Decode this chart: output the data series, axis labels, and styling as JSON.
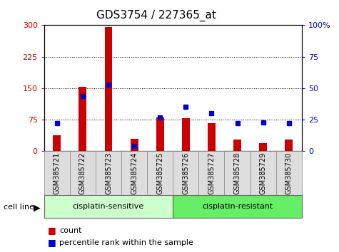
{
  "title": "GDS3754 / 227365_at",
  "samples": [
    "GSM385721",
    "GSM385722",
    "GSM385723",
    "GSM385724",
    "GSM385725",
    "GSM385726",
    "GSM385727",
    "GSM385728",
    "GSM385729",
    "GSM385730"
  ],
  "counts": [
    38,
    153,
    295,
    30,
    80,
    78,
    67,
    27,
    20,
    27
  ],
  "percentile_ranks": [
    22,
    44,
    53,
    4,
    27,
    35,
    30,
    22,
    23,
    22
  ],
  "left_ylim": [
    0,
    300
  ],
  "right_ylim": [
    0,
    100
  ],
  "left_yticks": [
    0,
    75,
    150,
    225,
    300
  ],
  "right_yticks": [
    0,
    25,
    50,
    75,
    100
  ],
  "right_yticklabels": [
    "0",
    "25",
    "50",
    "75",
    "100%"
  ],
  "bar_color": "#cc0000",
  "marker_color": "#0000cc",
  "sensitive_color": "#ccffcc",
  "resistant_color": "#66ee66",
  "group_label_sensitive": "cisplatin-sensitive",
  "group_label_resistant": "cisplatin-resistant",
  "cell_line_label": "cell line",
  "legend_count_label": "count",
  "legend_percentile_label": "percentile rank within the sample",
  "left_axis_color": "#cc0000",
  "right_axis_color": "#0000cc",
  "title_fontsize": 11,
  "tick_fontsize": 8,
  "label_fontsize": 7
}
